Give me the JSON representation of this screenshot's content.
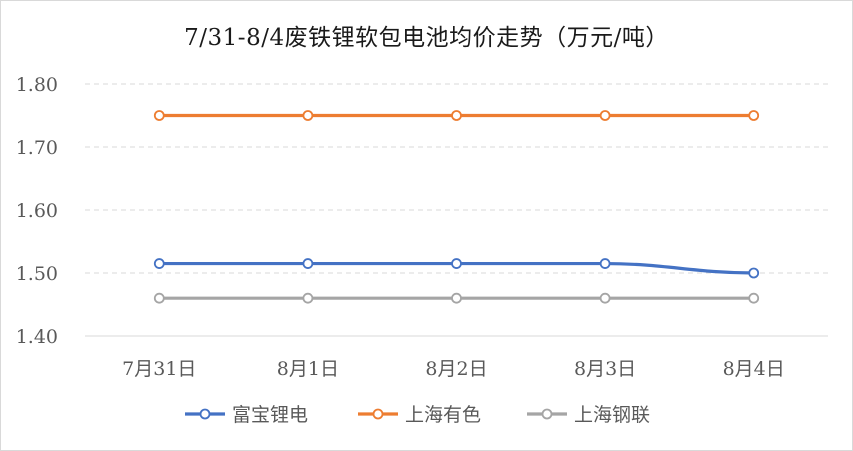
{
  "chart_data": {
    "type": "line",
    "title": "7/31-8/4废铁锂软包电池均价走势（万元/吨）",
    "categories": [
      "7月31日",
      "8月1日",
      "8月2日",
      "8月3日",
      "8月4日"
    ],
    "series": [
      {
        "name": "富宝锂电",
        "values": [
          1.515,
          1.515,
          1.515,
          1.515,
          1.5
        ],
        "color": "#4472c4"
      },
      {
        "name": "上海有色",
        "values": [
          1.75,
          1.75,
          1.75,
          1.75,
          1.75
        ],
        "color": "#ed7d31"
      },
      {
        "name": "上海钢联",
        "values": [
          1.46,
          1.46,
          1.46,
          1.46,
          1.46
        ],
        "color": "#a5a5a5"
      }
    ],
    "ylim": [
      1.4,
      1.8
    ],
    "yticks": [
      "1.40",
      "1.50",
      "1.60",
      "1.70",
      "1.80"
    ],
    "xlabel": "",
    "ylabel": "",
    "grid": true,
    "legend_position": "bottom"
  }
}
